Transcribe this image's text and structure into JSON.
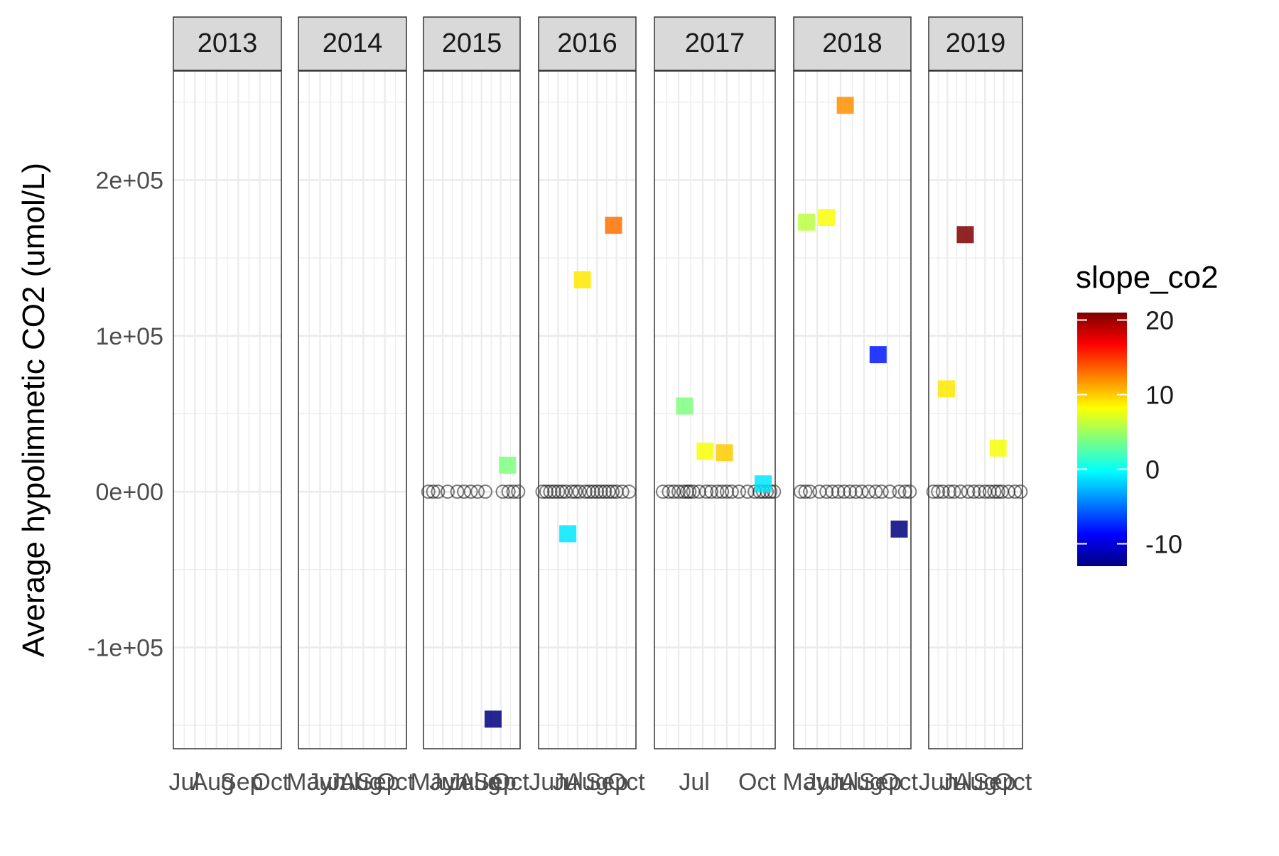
{
  "chart_data": {
    "type": "scatter",
    "facets": [
      "2013",
      "2014",
      "2015",
      "2016",
      "2017",
      "2018",
      "2019"
    ],
    "ylabel": "Average hypolimnetic CO2 (umol/L)",
    "xlabel": "",
    "ylim": [
      -165000,
      270000
    ],
    "yticks": [
      -100000,
      0,
      100000,
      200000
    ],
    "ytick_labels": [
      "-1e+05",
      "0e+00",
      "1e+05",
      "2e+05"
    ],
    "x_tick_labels": {
      "2013": [
        "Jul",
        "Aug",
        "Sep",
        "Oct"
      ],
      "2014": [
        "May",
        "Jun",
        "Jul",
        "Aug",
        "Sep",
        "Oct"
      ],
      "2015": [
        "May",
        "Jun",
        "Jul",
        "Aug",
        "Sep",
        "Oct"
      ],
      "2016": [
        "Jun",
        "Jul",
        "Aug",
        "Sep",
        "Oct"
      ],
      "2017": [
        "Jul",
        "Oct"
      ],
      "2018": [
        "May",
        "Jun",
        "Jul",
        "Aug",
        "Sep",
        "Oct"
      ],
      "2019": [
        "Jun",
        "Jul",
        "Aug",
        "Sep",
        "Oct"
      ]
    },
    "legend": {
      "title": "slope_co2",
      "min": -13,
      "max": 21,
      "ticks": [
        -10,
        0,
        10,
        20
      ],
      "tick_labels": [
        "-10",
        "0",
        "10",
        "20"
      ],
      "colors": [
        "#00007F",
        "#0000FF",
        "#007FFF",
        "#00FFFF",
        "#7FFF7F",
        "#FFFF00",
        "#FF7F00",
        "#FF0000",
        "#7F0000"
      ]
    },
    "slope_points": [
      {
        "year": "2015",
        "x": 0.87,
        "y": 17000,
        "slope": 4
      },
      {
        "year": "2015",
        "x": 0.72,
        "y": -146000,
        "slope": -13
      },
      {
        "year": "2016",
        "x": 0.3,
        "y": -27000,
        "slope": -1
      },
      {
        "year": "2016",
        "x": 0.45,
        "y": 136000,
        "slope": 9
      },
      {
        "year": "2016",
        "x": 0.77,
        "y": 171000,
        "slope": 13
      },
      {
        "year": "2017",
        "x": 0.25,
        "y": 55000,
        "slope": 4
      },
      {
        "year": "2017",
        "x": 0.42,
        "y": 26000,
        "slope": 8
      },
      {
        "year": "2017",
        "x": 0.58,
        "y": 25000,
        "slope": 10
      },
      {
        "year": "2017",
        "x": 0.9,
        "y": 5000,
        "slope": -1
      },
      {
        "year": "2018",
        "x": 0.11,
        "y": 173000,
        "slope": 6
      },
      {
        "year": "2018",
        "x": 0.28,
        "y": 176000,
        "slope": 8
      },
      {
        "year": "2018",
        "x": 0.44,
        "y": 248000,
        "slope": 12
      },
      {
        "year": "2018",
        "x": 0.72,
        "y": 88000,
        "slope": -8
      },
      {
        "year": "2018",
        "x": 0.9,
        "y": -24000,
        "slope": -13
      },
      {
        "year": "2019",
        "x": 0.19,
        "y": 66000,
        "slope": 9
      },
      {
        "year": "2019",
        "x": 0.39,
        "y": 165000,
        "slope": 21
      },
      {
        "year": "2019",
        "x": 0.74,
        "y": 28000,
        "slope": 8
      }
    ],
    "zero_points": [
      {
        "year": "2015",
        "x": [
          0.05,
          0.1,
          0.15,
          0.25,
          0.35,
          0.42,
          0.49,
          0.56,
          0.64,
          0.82,
          0.88,
          0.93,
          0.98
        ]
      },
      {
        "year": "2016",
        "x": [
          0.04,
          0.08,
          0.12,
          0.16,
          0.2,
          0.24,
          0.28,
          0.34,
          0.38,
          0.42,
          0.48,
          0.52,
          0.56,
          0.6,
          0.64,
          0.68,
          0.72,
          0.76,
          0.8,
          0.86,
          0.93
        ]
      },
      {
        "year": "2017",
        "x": [
          0.07,
          0.12,
          0.16,
          0.2,
          0.24,
          0.27,
          0.29,
          0.32,
          0.37,
          0.43,
          0.47,
          0.52,
          0.56,
          0.6,
          0.64,
          0.7,
          0.77,
          0.83,
          0.87,
          0.9,
          0.93,
          0.96,
          0.99
        ]
      },
      {
        "year": "2018",
        "x": [
          0.06,
          0.1,
          0.14,
          0.22,
          0.28,
          0.33,
          0.38,
          0.43,
          0.48,
          0.53,
          0.58,
          0.64,
          0.7,
          0.75,
          0.82,
          0.9,
          0.95,
          0.99
        ]
      },
      {
        "year": "2019",
        "x": [
          0.05,
          0.1,
          0.15,
          0.22,
          0.27,
          0.34,
          0.42,
          0.48,
          0.54,
          0.6,
          0.65,
          0.7,
          0.74,
          0.78,
          0.85,
          0.92,
          0.98
        ]
      }
    ]
  }
}
